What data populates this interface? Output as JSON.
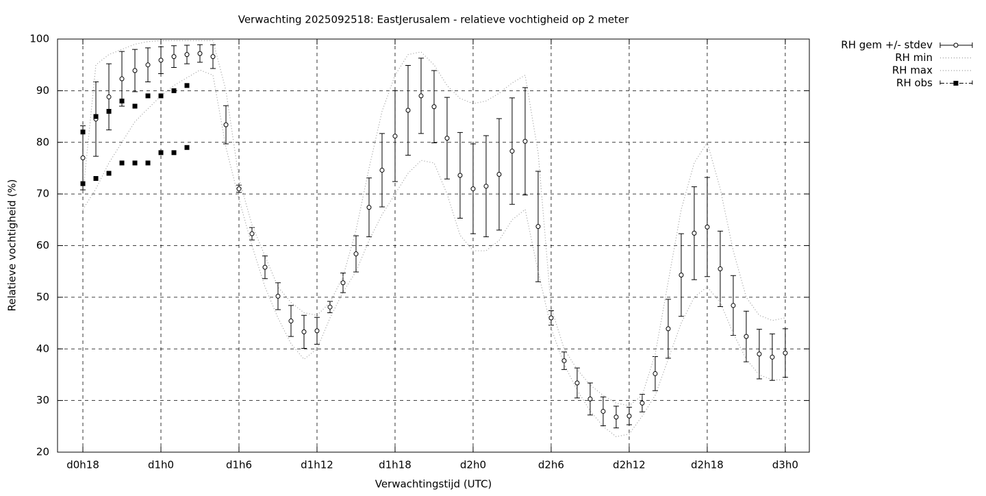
{
  "chart_data": {
    "type": "line",
    "title": "Verwachting 2025092518: EastJerusalem - relatieve vochtigheid op 2 meter",
    "xlabel": "Verwachtingstijd (UTC)",
    "ylabel": "Relatieve vochtigheid (%)",
    "x": [
      0,
      1,
      2,
      3,
      4,
      5,
      6,
      7,
      8,
      9,
      10,
      11,
      12,
      13,
      14,
      15,
      16,
      17,
      18,
      19,
      20,
      21,
      22,
      23,
      24,
      25,
      26,
      27,
      28,
      29,
      30,
      31,
      32,
      33,
      34,
      35,
      36,
      37,
      38,
      39,
      40,
      41,
      42,
      43,
      44,
      45,
      46,
      47,
      48,
      49,
      50,
      51,
      52,
      53,
      54
    ],
    "xlim": [
      -1.95,
      55.85
    ],
    "xticks": [
      {
        "value": 0,
        "label": "d0h18"
      },
      {
        "value": 6,
        "label": "d1h0"
      },
      {
        "value": 12,
        "label": "d1h6"
      },
      {
        "value": 18,
        "label": "d1h12"
      },
      {
        "value": 24,
        "label": "d1h18"
      },
      {
        "value": 30,
        "label": "d2h0"
      },
      {
        "value": 36,
        "label": "d2h6"
      },
      {
        "value": 42,
        "label": "d2h12"
      },
      {
        "value": 48,
        "label": "d2h18"
      },
      {
        "value": 54,
        "label": "d3h0"
      }
    ],
    "ylim": [
      20,
      100
    ],
    "yticks": [
      20,
      30,
      40,
      50,
      60,
      70,
      80,
      90,
      100
    ],
    "grid": true,
    "legend": "outside-right",
    "series": [
      {
        "name": "RH gem +/- stdev",
        "color": "#000000",
        "style": "errorbars",
        "values": [
          77,
          84.5,
          88.8,
          92.3,
          93.9,
          95,
          95.9,
          96.6,
          97,
          97.2,
          96.6,
          83.4,
          71,
          62.3,
          55.8,
          50.2,
          45.4,
          43.3,
          43.5,
          48.1,
          52.8,
          58.4,
          67.4,
          74.6,
          81.2,
          86.2,
          89,
          86.9,
          80.8,
          73.6,
          71,
          71.5,
          73.8,
          78.3,
          80.2,
          63.7,
          46,
          37.7,
          33.4,
          30.3,
          27.9,
          26.8,
          27,
          29.5,
          35.2,
          43.9,
          54.3,
          62.4,
          63.6,
          55.5,
          48.4,
          42.4,
          39,
          38.4,
          39.2
        ],
        "errors": [
          6.2,
          7.2,
          6.4,
          5.3,
          4.1,
          3.3,
          2.6,
          2.1,
          1.8,
          1.7,
          2.3,
          3.7,
          0.7,
          1.2,
          2.2,
          2.6,
          3,
          3.2,
          2.6,
          1.1,
          1.9,
          3.5,
          5.7,
          7.1,
          8.8,
          8.7,
          7.3,
          7,
          7.9,
          8.3,
          8.7,
          9.8,
          10.8,
          10.3,
          10.4,
          10.7,
          1.4,
          1.7,
          2.9,
          3.1,
          2.8,
          2.1,
          1.7,
          1.7,
          3.3,
          5.7,
          8,
          9,
          9.6,
          7.3,
          5.8,
          4.9,
          4.8,
          4.5,
          4.7
        ]
      },
      {
        "name": "RH min",
        "color": "#999999",
        "style": "dotted",
        "values": [
          67,
          71,
          76,
          80,
          84,
          86.5,
          89,
          91,
          92.5,
          94,
          93,
          79,
          69,
          60,
          52,
          46,
          41,
          38,
          40,
          46,
          51,
          55,
          61,
          66,
          70,
          74,
          76.5,
          76,
          70,
          62,
          59,
          59,
          61,
          65,
          67,
          55,
          44,
          37,
          32,
          28,
          25,
          23,
          23.5,
          27,
          31,
          38,
          45,
          50,
          52,
          49,
          43,
          38,
          35,
          34,
          34
        ]
      },
      {
        "name": "RH max",
        "color": "#999999",
        "style": "dotted",
        "values": [
          70,
          95,
          97,
          98,
          99,
          99.5,
          99.7,
          99.7,
          99.7,
          99.7,
          99.7,
          90,
          73,
          64,
          58,
          52,
          49,
          47,
          46.5,
          49,
          54,
          63,
          75,
          86,
          93,
          97,
          97.5,
          95,
          91,
          88.5,
          87.5,
          88,
          89.5,
          91.5,
          93,
          78,
          48,
          40,
          36,
          33,
          31,
          29.5,
          29,
          31,
          39,
          53,
          67,
          76,
          80,
          71,
          59,
          50,
          46.5,
          45.5,
          46
        ]
      },
      {
        "name": "RH obs",
        "color": "#000000",
        "style": "squares",
        "x": [
          0,
          0,
          1,
          1,
          2,
          2,
          3,
          3,
          4,
          4,
          5,
          5,
          6,
          6,
          7,
          7,
          8,
          8
        ],
        "values": [
          82,
          72,
          85,
          73,
          86,
          74,
          88,
          76,
          87,
          76,
          89,
          76,
          89,
          78,
          90,
          78,
          91,
          79
        ]
      }
    ]
  }
}
